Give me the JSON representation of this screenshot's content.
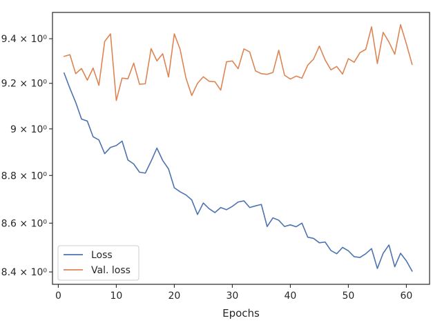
{
  "chart_data": {
    "type": "line",
    "title": "",
    "xlabel": "Epochs",
    "ylabel": "",
    "yscale": "log",
    "xlim": [
      -1,
      64
    ],
    "ylim": [
      8.35,
      9.52
    ],
    "grid": false,
    "legend_position": "lower-left",
    "x_ticks": [
      0,
      10,
      20,
      30,
      40,
      50,
      60
    ],
    "x_tick_labels": [
      "0",
      "10",
      "20",
      "30",
      "40",
      "50",
      "60"
    ],
    "y_ticks": [
      8.4,
      8.6,
      8.8,
      9.0,
      9.2,
      9.4
    ],
    "y_tick_labels": [
      "8.4 × 10⁰",
      "8.6 × 10⁰",
      "8.8 × 10⁰",
      "9 × 10⁰",
      "9.2 × 10⁰",
      "9.4 × 10⁰"
    ],
    "x": [
      1,
      2,
      3,
      4,
      5,
      6,
      7,
      8,
      9,
      10,
      11,
      12,
      13,
      14,
      15,
      16,
      17,
      18,
      19,
      20,
      21,
      22,
      23,
      24,
      25,
      26,
      27,
      28,
      29,
      30,
      31,
      32,
      33,
      34,
      35,
      36,
      37,
      38,
      39,
      40,
      41,
      42,
      43,
      44,
      45,
      46,
      47,
      48,
      49,
      50,
      51,
      52,
      53,
      54,
      55,
      56,
      57,
      58,
      59,
      60,
      61
    ],
    "series": [
      {
        "name": "Loss",
        "color": "#4c72b0",
        "values": [
          9.246,
          9.178,
          9.116,
          9.043,
          9.034,
          8.966,
          8.952,
          8.893,
          8.92,
          8.928,
          8.947,
          8.866,
          8.849,
          8.814,
          8.81,
          8.861,
          8.917,
          8.864,
          8.828,
          8.748,
          8.731,
          8.718,
          8.697,
          8.636,
          8.684,
          8.66,
          8.644,
          8.665,
          8.656,
          8.67,
          8.688,
          8.693,
          8.665,
          8.672,
          8.678,
          8.586,
          8.622,
          8.612,
          8.586,
          8.593,
          8.585,
          8.6,
          8.542,
          8.537,
          8.519,
          8.522,
          8.487,
          8.474,
          8.5,
          8.486,
          8.462,
          8.459,
          8.474,
          8.495,
          8.414,
          8.476,
          8.51,
          8.421,
          8.476,
          8.445,
          8.403
        ]
      },
      {
        "name": "Val. loss",
        "color": "#dd8452",
        "values": [
          9.32,
          9.328,
          9.243,
          9.266,
          9.214,
          9.268,
          9.191,
          9.388,
          9.422,
          9.124,
          9.223,
          9.22,
          9.29,
          9.196,
          9.198,
          9.355,
          9.3,
          9.332,
          9.228,
          9.422,
          9.352,
          9.224,
          9.146,
          9.2,
          9.229,
          9.209,
          9.207,
          9.17,
          9.296,
          9.3,
          9.265,
          9.354,
          9.34,
          9.255,
          9.243,
          9.24,
          9.248,
          9.348,
          9.236,
          9.219,
          9.232,
          9.223,
          9.281,
          9.308,
          9.367,
          9.304,
          9.26,
          9.275,
          9.241,
          9.31,
          9.294,
          9.337,
          9.352,
          9.454,
          9.288,
          9.429,
          9.385,
          9.33,
          9.464,
          9.377,
          9.284
        ]
      }
    ]
  }
}
